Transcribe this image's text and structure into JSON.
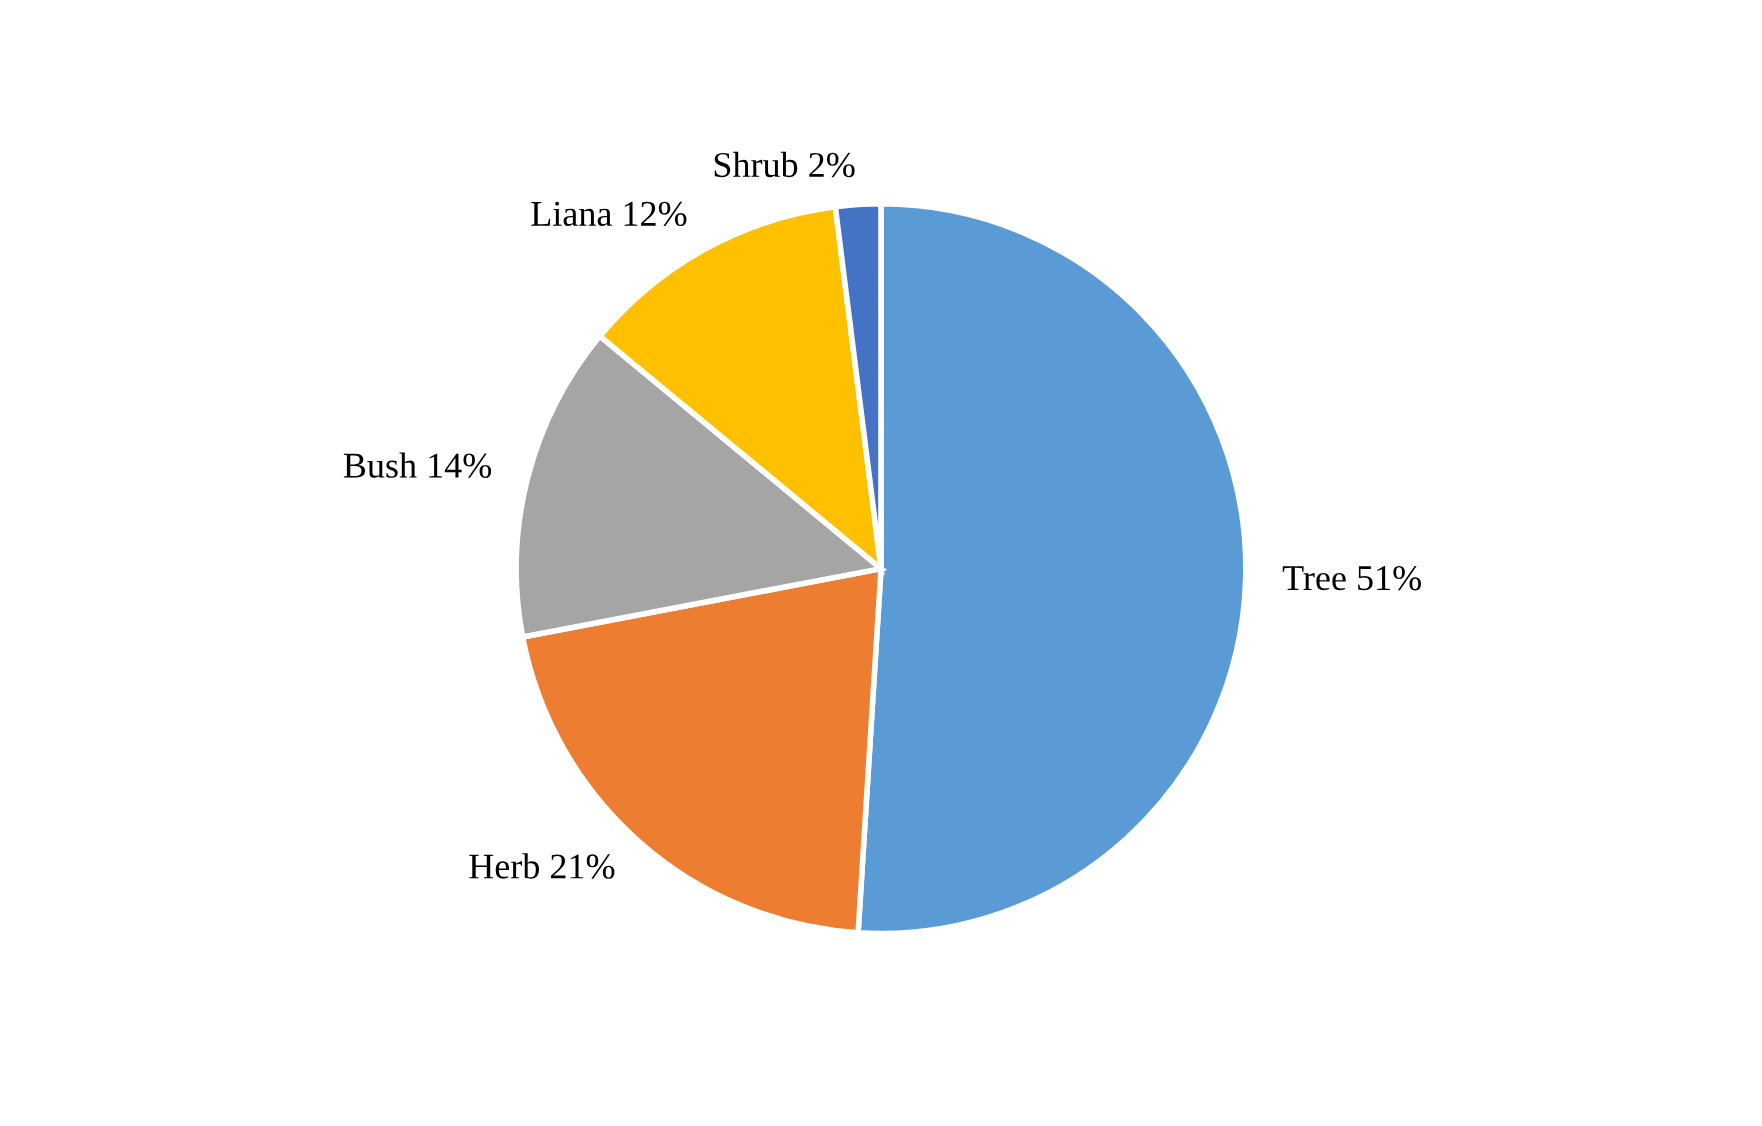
{
  "chart_data": {
    "type": "pie",
    "categories": [
      "Tree",
      "Herb",
      "Bush",
      "Liana",
      "Shrub"
    ],
    "values": [
      51,
      21,
      14,
      12,
      2
    ],
    "value_labels": [
      "51%",
      "21%",
      "14%",
      "12%",
      "2%"
    ],
    "colors": [
      "#5b9bd5",
      "#ed7d31",
      "#a5a5a5",
      "#ffc000",
      "#4472c4"
    ]
  }
}
